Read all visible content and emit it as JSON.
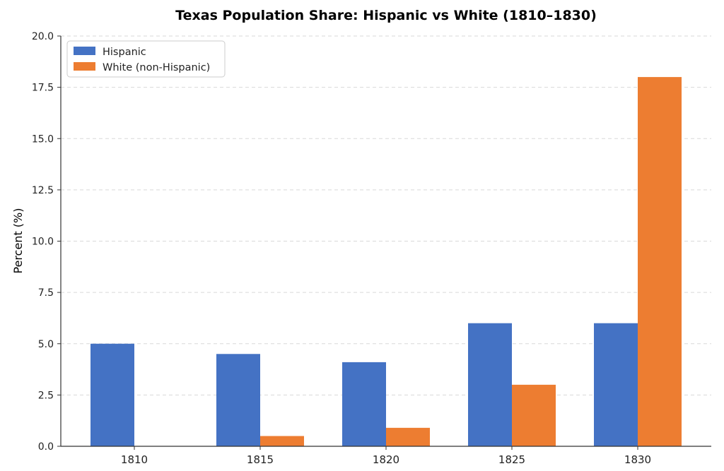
{
  "chart_data": {
    "type": "bar",
    "title": "Texas Population Share: Hispanic vs White (1810–1830)",
    "xlabel": "",
    "ylabel": "Percent (%)",
    "categories": [
      "1810",
      "1815",
      "1820",
      "1825",
      "1830"
    ],
    "series": [
      {
        "name": "Hispanic",
        "values": [
          5.0,
          4.5,
          4.1,
          6.0,
          6.0
        ],
        "color": "#4472c4"
      },
      {
        "name": "White (non-Hispanic)",
        "values": [
          0.0,
          0.5,
          0.9,
          3.0,
          18.0
        ],
        "color": "#ed7d31"
      }
    ],
    "ylim": [
      0,
      20
    ],
    "yticks": [
      "0.0",
      "2.5",
      "5.0",
      "7.5",
      "10.0",
      "12.5",
      "15.0",
      "17.5",
      "20.0"
    ],
    "grid": "horizontal dashed",
    "legend_position": "top-left"
  }
}
